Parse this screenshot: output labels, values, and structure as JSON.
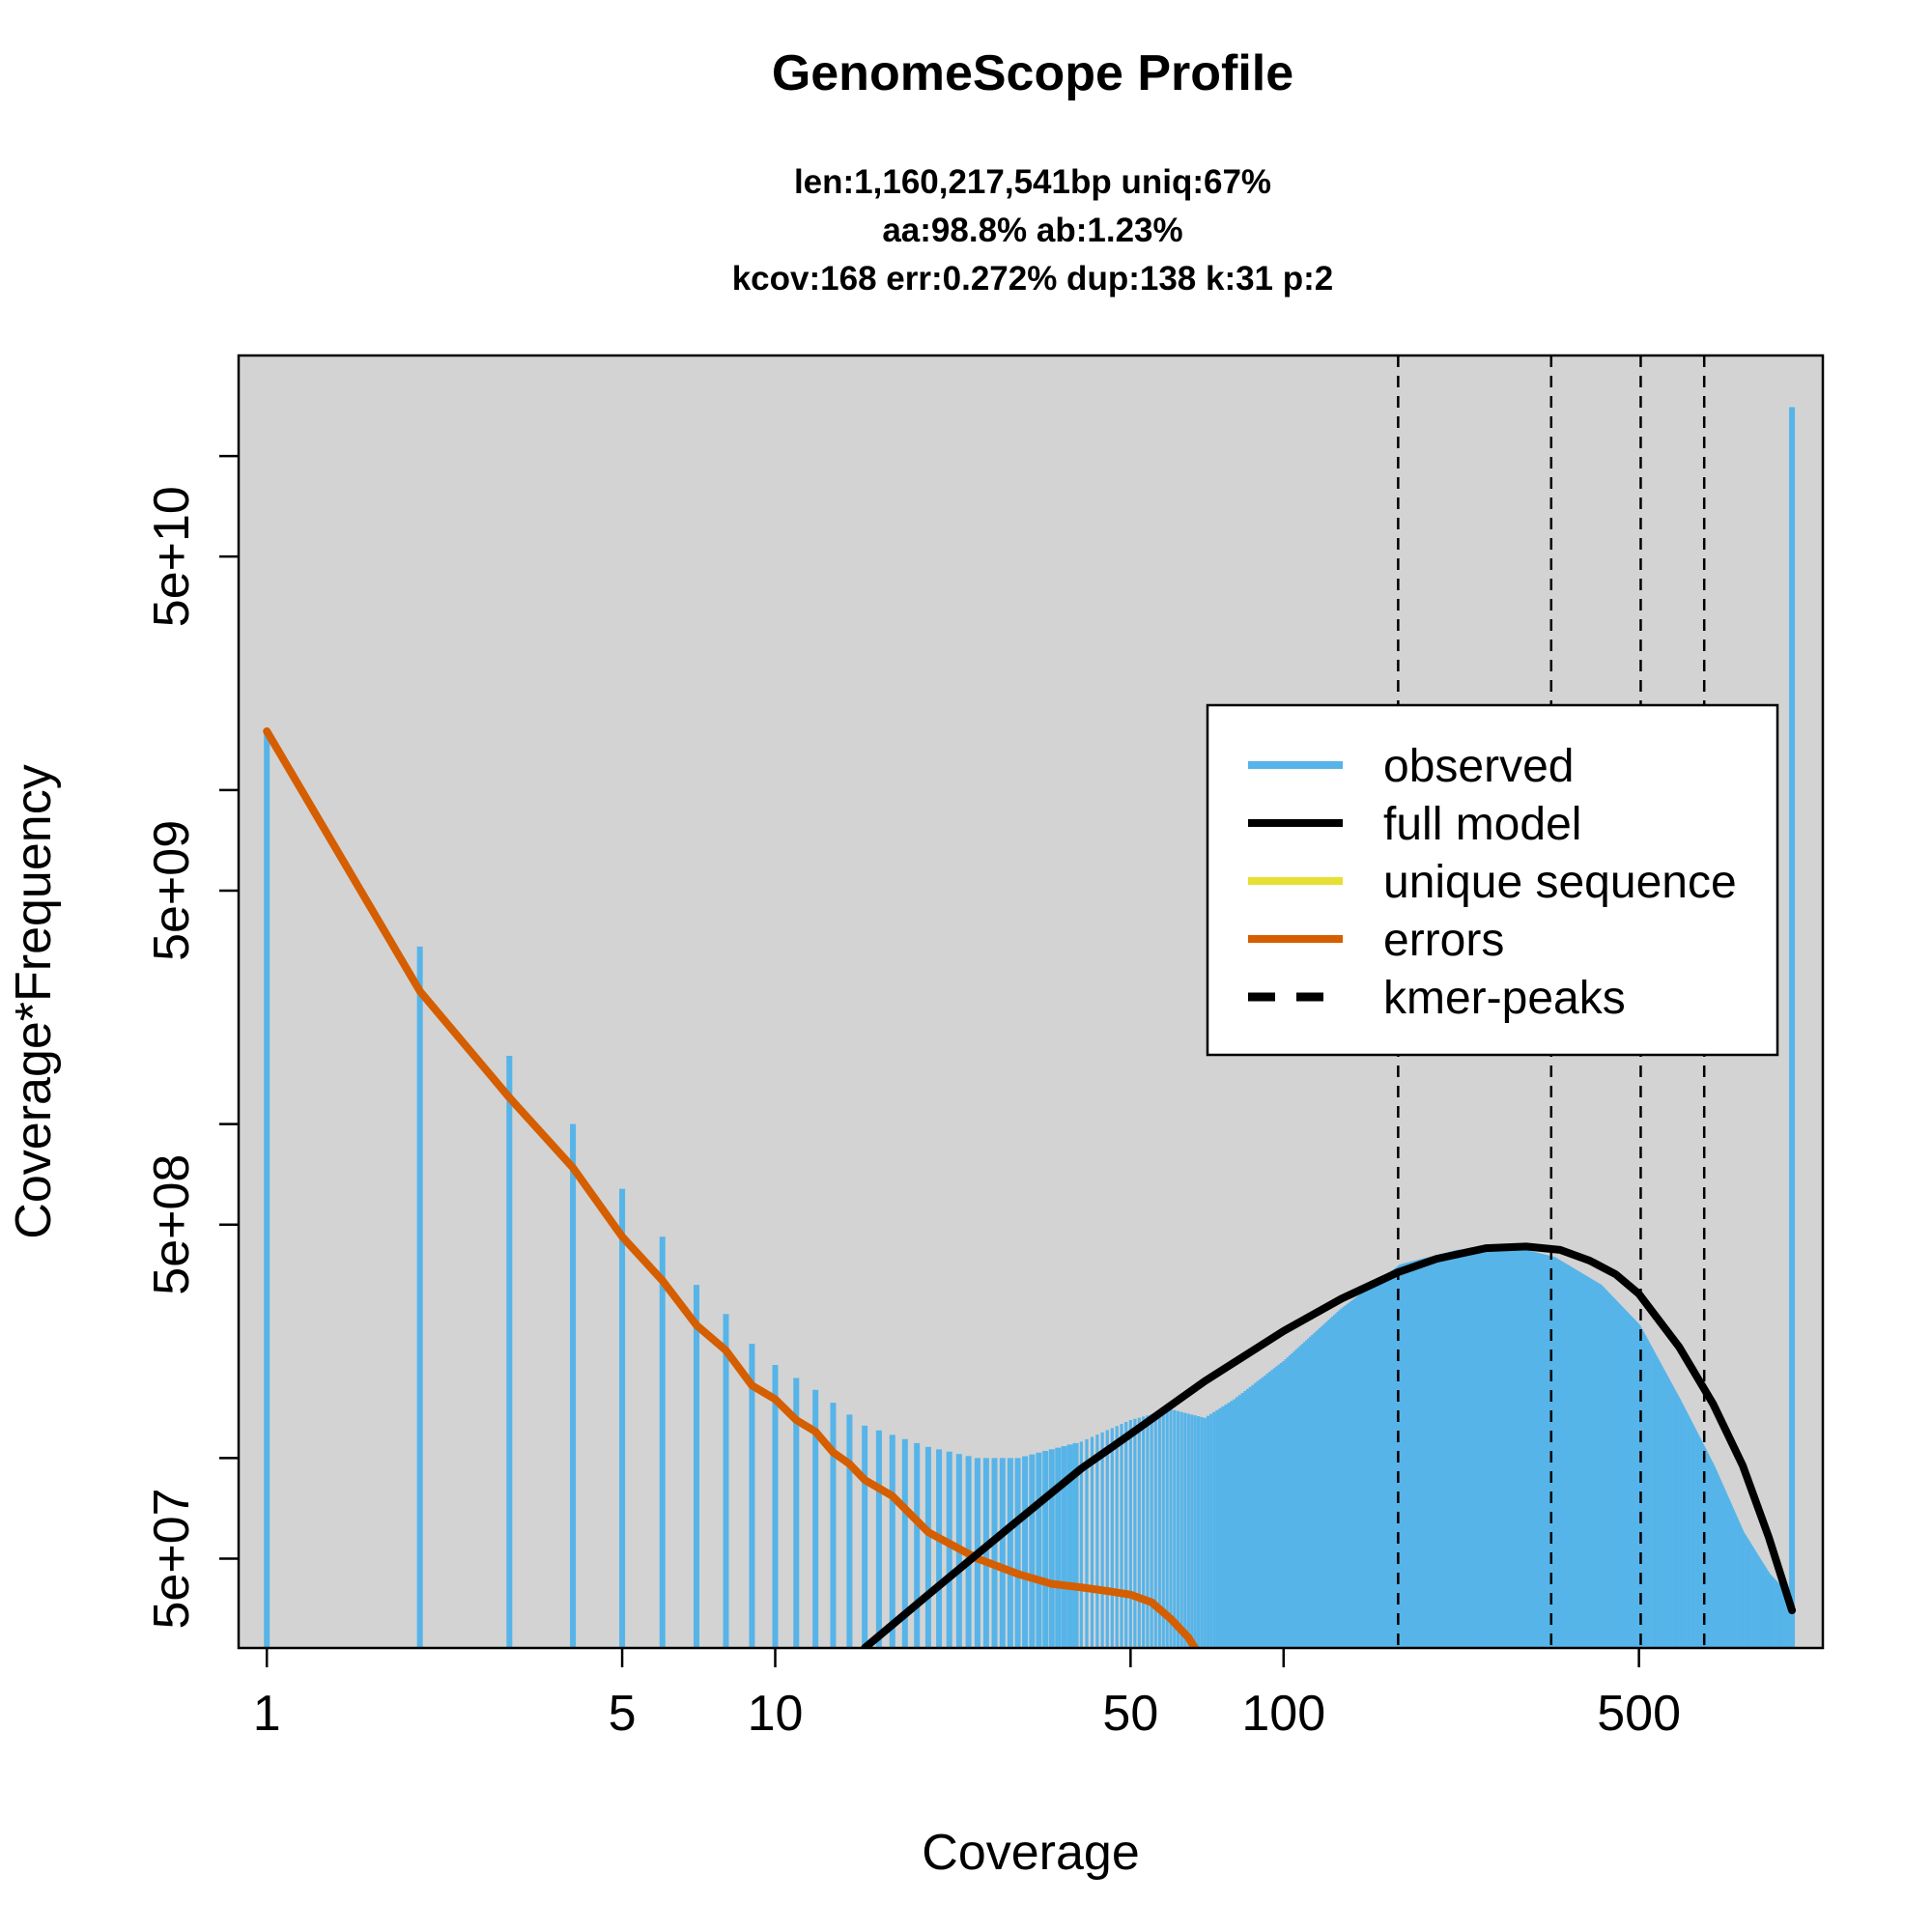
{
  "chart_data": {
    "type": "line",
    "title": "GenomeScope Profile",
    "subtitle_lines": [
      "len:1,160,217,541bp uniq:67%",
      "aa:98.8% ab:1.23%",
      "kcov:168 err:0.272%  dup:138  k:31 p:2"
    ],
    "xlabel": "Coverage",
    "ylabel": "Coverage*Frequency",
    "x_scale": "log",
    "y_scale": "log",
    "xlim": [
      0.88,
      1150
    ],
    "ylim": [
      27000000,
      200000000000
    ],
    "x_ticks": [
      {
        "value": 1,
        "label": "1"
      },
      {
        "value": 5,
        "label": "5"
      },
      {
        "value": 10,
        "label": "10"
      },
      {
        "value": 50,
        "label": "50"
      },
      {
        "value": 100,
        "label": "100"
      },
      {
        "value": 500,
        "label": "500"
      }
    ],
    "y_ticks": [
      {
        "value": 20000000,
        "label": ""
      },
      {
        "value": 50000000,
        "label": "5e+07"
      },
      {
        "value": 100000000,
        "label": ""
      },
      {
        "value": 500000000,
        "label": "5e+08"
      },
      {
        "value": 1000000000,
        "label": ""
      },
      {
        "value": 5000000000,
        "label": "5e+09"
      },
      {
        "value": 10000000000,
        "label": ""
      },
      {
        "value": 50000000000,
        "label": "5e+10"
      },
      {
        "value": 100000000000,
        "label": ""
      }
    ],
    "grid": false,
    "legend": {
      "placement": "right",
      "items": [
        {
          "label": "observed",
          "color": "#56B4E9",
          "style": "solid"
        },
        {
          "label": "full model",
          "color": "#000000",
          "style": "solid"
        },
        {
          "label": "unique sequence",
          "color": "#E7E034",
          "style": "solid"
        },
        {
          "label": "errors",
          "color": "#D55E00",
          "style": "solid"
        },
        {
          "label": "kmer-peaks",
          "color": "#000000",
          "style": "dashed"
        }
      ]
    },
    "colors": {
      "background": "#D3D3D3",
      "observed": "#56B4E9",
      "full_model": "#000000",
      "errors": "#D55E00"
    },
    "kmer_peaks_x": [
      168,
      336,
      504,
      672
    ],
    "observed_anchors": {
      "x": [
        1,
        2,
        3,
        4,
        5,
        6,
        7,
        8,
        9,
        10,
        12,
        15,
        20,
        25,
        30,
        40,
        50,
        60,
        70,
        80,
        100,
        130,
        170,
        220,
        280,
        340,
        420,
        500,
        600,
        700,
        800,
        900,
        1000
      ],
      "y": [
        15000000000,
        3400000000,
        1600000000,
        1000000000,
        640000000,
        460000000,
        330000000,
        270000000,
        220000000,
        190000000,
        160000000,
        125000000,
        108000000,
        100000000,
        100000000,
        112000000,
        130000000,
        140000000,
        132000000,
        150000000,
        195000000,
        280000000,
        380000000,
        420000000,
        430000000,
        400000000,
        330000000,
        250000000,
        150000000,
        95000000,
        60000000,
        45000000,
        38000000
      ]
    },
    "observed_spike": {
      "x": 1000,
      "y": 140000000000
    },
    "full_model": {
      "x": [
        15,
        20,
        30,
        40,
        50,
        70,
        100,
        130,
        168,
        200,
        250,
        300,
        350,
        400,
        450,
        500,
        600,
        700,
        800,
        900,
        1000
      ],
      "y": [
        27000000,
        39000000,
        65000000,
        93000000,
        118000000,
        170000000,
        240000000,
        300000000,
        360000000,
        395000000,
        425000000,
        430000000,
        420000000,
        390000000,
        355000000,
        310000000,
        215000000,
        145000000,
        95000000,
        58000000,
        35000000
      ]
    },
    "errors": {
      "x": [
        1,
        2,
        3,
        4,
        5,
        6,
        7,
        8,
        9,
        10,
        11,
        12,
        13,
        14,
        15,
        17,
        20,
        25,
        30,
        35,
        40,
        45,
        50,
        55,
        60,
        65,
        68
      ],
      "y": [
        15000000000,
        2500000000,
        1200000000,
        740000000,
        460000000,
        340000000,
        250000000,
        210000000,
        165000000,
        150000000,
        130000000,
        120000000,
        104000000,
        96000000,
        86000000,
        77000000,
        60000000,
        50000000,
        45000000,
        42000000,
        41000000,
        40000000,
        39000000,
        37000000,
        33000000,
        29000000,
        26000000
      ]
    }
  }
}
